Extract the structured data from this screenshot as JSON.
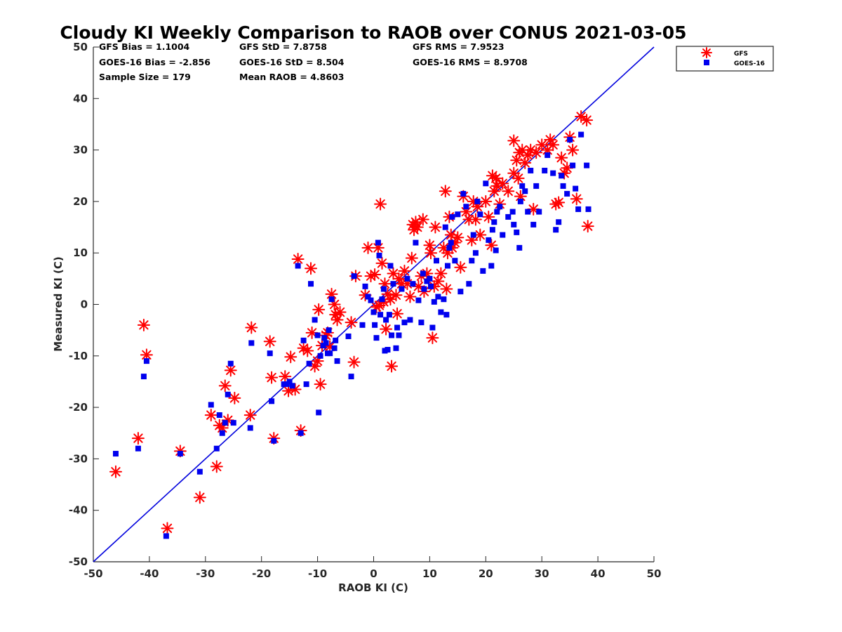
{
  "chart_data": {
    "type": "scatter",
    "title": "Cloudy KI Weekly Comparison to RAOB over CONUS 2021-03-05",
    "xlabel": "RAOB KI (C)",
    "ylabel": "Measured KI (C)",
    "xlim": [
      -50,
      50
    ],
    "ylim": [
      -50,
      50
    ],
    "xticks": [
      "-50",
      "-40",
      "-30",
      "-20",
      "-10",
      "0",
      "10",
      "20",
      "30",
      "40",
      "50"
    ],
    "yticks": [
      "-50",
      "-40",
      "-30",
      "-20",
      "-10",
      "0",
      "10",
      "20",
      "30",
      "40",
      "50"
    ],
    "grid": false,
    "legend_position": "top-right outside",
    "reference_line": {
      "label": "1:1",
      "from": [
        -50,
        -50
      ],
      "to": [
        50,
        50
      ],
      "color": "#0000dd"
    },
    "stats": {
      "gfs_bias": "GFS Bias = 1.1004",
      "goes_bias": "GOES-16 Bias = -2.856",
      "sample_size": "Sample Size = 179",
      "gfs_std": "GFS StD = 7.8758",
      "goes_std": "GOES-16 StD = 8.504",
      "mean_raob": "Mean RAOB = 4.8603",
      "gfs_rms": "GFS RMS = 7.9523",
      "goes_rms": "GOES-16 RMS = 8.9708"
    },
    "series": [
      {
        "name": "GFS",
        "marker": "asterisk",
        "color": "#ff0000",
        "points": [
          [
            -46,
            -32.5
          ],
          [
            -42,
            -26
          ],
          [
            -41,
            -4
          ],
          [
            -40.5,
            -9.8
          ],
          [
            -36.8,
            -43.5
          ],
          [
            -34.5,
            -28.5
          ],
          [
            -31,
            -37.5
          ],
          [
            -29,
            -21.5
          ],
          [
            -28,
            -31.5
          ],
          [
            -27.5,
            -23.5
          ],
          [
            -27,
            -24
          ],
          [
            -26.5,
            -15.8
          ],
          [
            -26,
            -22.5
          ],
          [
            -25.5,
            -12.8
          ],
          [
            -24.8,
            -18.2
          ],
          [
            -22,
            -21.5
          ],
          [
            -21.8,
            -4.5
          ],
          [
            -18.5,
            -7.2
          ],
          [
            -18.2,
            -14.2
          ],
          [
            -17.8,
            -26
          ],
          [
            -15.8,
            -14
          ],
          [
            -15.2,
            -16.8
          ],
          [
            -14.8,
            -10.2
          ],
          [
            -14,
            -16.5
          ],
          [
            -13.5,
            8.8
          ],
          [
            -13,
            -24.5
          ],
          [
            -12.5,
            -8.5
          ],
          [
            -11.8,
            -9
          ],
          [
            -11.2,
            7
          ],
          [
            -11,
            -5.5
          ],
          [
            -10.5,
            -12
          ],
          [
            -10,
            -11
          ],
          [
            -9.8,
            -1
          ],
          [
            -9.5,
            -15.5
          ],
          [
            -9.2,
            -8
          ],
          [
            -8.5,
            -6
          ],
          [
            -8.2,
            -5.5
          ],
          [
            -7.8,
            -8.2
          ],
          [
            -7.5,
            2
          ],
          [
            -7,
            0
          ],
          [
            -6.8,
            -2
          ],
          [
            -6.5,
            -3
          ],
          [
            -6,
            -1.5
          ],
          [
            -4,
            -3.5
          ],
          [
            -3.5,
            -11.2
          ],
          [
            -3.2,
            5.5
          ],
          [
            -1.5,
            1.8
          ],
          [
            -1,
            11
          ],
          [
            -0.5,
            5.5
          ],
          [
            0.2,
            5.8
          ],
          [
            0.5,
            -0.5
          ],
          [
            0.8,
            11
          ],
          [
            1,
            -0.2
          ],
          [
            1.2,
            19.5
          ],
          [
            1.5,
            8
          ],
          [
            1.8,
            0.5
          ],
          [
            2,
            4
          ],
          [
            2.2,
            -4.8
          ],
          [
            2.5,
            2
          ],
          [
            3,
            1
          ],
          [
            3.2,
            -12
          ],
          [
            3.5,
            6
          ],
          [
            4,
            1.8
          ],
          [
            4.2,
            -1.8
          ],
          [
            4.5,
            5
          ],
          [
            5,
            4
          ],
          [
            5.5,
            6.5
          ],
          [
            6,
            4
          ],
          [
            6.5,
            1.5
          ],
          [
            6.8,
            9
          ],
          [
            7,
            15.5
          ],
          [
            7.2,
            14.5
          ],
          [
            7.5,
            16
          ],
          [
            7.8,
            15
          ],
          [
            8,
            3.5
          ],
          [
            8.5,
            5.5
          ],
          [
            8.8,
            16.5
          ],
          [
            9,
            2.5
          ],
          [
            9.5,
            6
          ],
          [
            10,
            11.5
          ],
          [
            10.2,
            10
          ],
          [
            10.5,
            -6.5
          ],
          [
            10.8,
            3.5
          ],
          [
            11,
            15
          ],
          [
            11.5,
            4.5
          ],
          [
            12,
            6
          ],
          [
            12.5,
            11
          ],
          [
            12.8,
            22
          ],
          [
            13,
            3
          ],
          [
            13.2,
            10
          ],
          [
            13.5,
            17
          ],
          [
            13.8,
            13.5
          ],
          [
            14,
            11
          ],
          [
            14.5,
            12
          ],
          [
            15,
            13
          ],
          [
            15.5,
            7.2
          ],
          [
            16,
            21
          ],
          [
            16.5,
            18
          ],
          [
            17,
            16.5
          ],
          [
            17.5,
            12.5
          ],
          [
            17.8,
            20
          ],
          [
            18.2,
            16.5
          ],
          [
            18.5,
            19
          ],
          [
            19,
            13.5
          ],
          [
            20,
            20
          ],
          [
            20.5,
            17
          ],
          [
            21,
            11.5
          ],
          [
            21.2,
            25
          ],
          [
            21.5,
            22
          ],
          [
            21.8,
            24.5
          ],
          [
            22,
            23
          ],
          [
            22.5,
            19.5
          ],
          [
            23,
            23.5
          ],
          [
            24,
            22
          ],
          [
            25,
            25.5
          ],
          [
            25,
            31.8
          ],
          [
            25.5,
            28
          ],
          [
            25.8,
            24.5
          ],
          [
            26,
            29.5
          ],
          [
            26.2,
            21
          ],
          [
            26.5,
            30
          ],
          [
            27,
            27.5
          ],
          [
            27.5,
            29
          ],
          [
            28,
            30
          ],
          [
            28.5,
            18.5
          ],
          [
            29,
            29.5
          ],
          [
            30,
            31
          ],
          [
            31,
            30
          ],
          [
            31.5,
            32
          ],
          [
            32,
            31
          ],
          [
            32.5,
            19.5
          ],
          [
            33,
            19.8
          ],
          [
            33.5,
            28.5
          ],
          [
            34,
            25.5
          ],
          [
            34.5,
            26.5
          ],
          [
            35,
            32.5
          ],
          [
            35.5,
            30
          ],
          [
            36.2,
            20.5
          ],
          [
            37,
            36.5
          ],
          [
            38,
            35.8
          ],
          [
            38.2,
            15.2
          ]
        ]
      },
      {
        "name": "GOES-16",
        "marker": "square",
        "color": "#0000ee",
        "points": [
          [
            -46,
            -29
          ],
          [
            -42,
            -28
          ],
          [
            -41,
            -14
          ],
          [
            -40.5,
            -11
          ],
          [
            -37,
            -45
          ],
          [
            -34.5,
            -29
          ],
          [
            -31,
            -32.5
          ],
          [
            -29,
            -19.5
          ],
          [
            -28,
            -28
          ],
          [
            -27.5,
            -21.5
          ],
          [
            -27,
            -25
          ],
          [
            -26.5,
            -23
          ],
          [
            -26,
            -17.5
          ],
          [
            -25.5,
            -11.5
          ],
          [
            -25,
            -23
          ],
          [
            -22,
            -24
          ],
          [
            -21.8,
            -7.5
          ],
          [
            -18.5,
            -9.5
          ],
          [
            -18.2,
            -18.8
          ],
          [
            -17.8,
            -26.5
          ],
          [
            -16,
            -15.5
          ],
          [
            -15.5,
            -15.5
          ],
          [
            -15,
            -15
          ],
          [
            -14.5,
            -15.8
          ],
          [
            -13.5,
            7.5
          ],
          [
            -13,
            -25
          ],
          [
            -12.5,
            -7
          ],
          [
            -12,
            -15.5
          ],
          [
            -11.5,
            -11.5
          ],
          [
            -11.2,
            4
          ],
          [
            -10.5,
            -3
          ],
          [
            -10,
            -6
          ],
          [
            -9.8,
            -21
          ],
          [
            -9.5,
            -10
          ],
          [
            -9,
            -8
          ],
          [
            -8.8,
            -6.5
          ],
          [
            -8.5,
            -7.5
          ],
          [
            -8.2,
            -9.5
          ],
          [
            -8,
            -5
          ],
          [
            -7.8,
            -9.5
          ],
          [
            -7.5,
            1
          ],
          [
            -7,
            -8.5
          ],
          [
            -6.8,
            -7
          ],
          [
            -6.5,
            -11
          ],
          [
            -4.5,
            -6.2
          ],
          [
            -4,
            -14
          ],
          [
            -3.5,
            5.5
          ],
          [
            -2,
            -4
          ],
          [
            -1.5,
            3.5
          ],
          [
            -1,
            1.5
          ],
          [
            -0.5,
            0.8
          ],
          [
            0,
            -1.5
          ],
          [
            0.2,
            -4
          ],
          [
            0.5,
            -6.5
          ],
          [
            0.8,
            12
          ],
          [
            1,
            9.5
          ],
          [
            1.2,
            -2
          ],
          [
            1.5,
            1
          ],
          [
            1.8,
            3
          ],
          [
            2,
            -9
          ],
          [
            2.2,
            -3
          ],
          [
            2.5,
            -8.8
          ],
          [
            2.8,
            -2
          ],
          [
            3,
            7.5
          ],
          [
            3.2,
            -6
          ],
          [
            3.5,
            4
          ],
          [
            4,
            -8.5
          ],
          [
            4.2,
            -4.5
          ],
          [
            4.5,
            -6
          ],
          [
            5,
            3
          ],
          [
            5.5,
            -3.5
          ],
          [
            6,
            5
          ],
          [
            6.5,
            -3
          ],
          [
            7,
            4
          ],
          [
            7.5,
            12
          ],
          [
            8,
            0.8
          ],
          [
            8.5,
            -3.5
          ],
          [
            8.8,
            6
          ],
          [
            9,
            3
          ],
          [
            9.5,
            4.5
          ],
          [
            10,
            5
          ],
          [
            10.2,
            3.5
          ],
          [
            10.5,
            -4.5
          ],
          [
            10.8,
            0.5
          ],
          [
            11.2,
            8.5
          ],
          [
            11.5,
            1.5
          ],
          [
            12,
            -1.5
          ],
          [
            12.5,
            1
          ],
          [
            12.8,
            15
          ],
          [
            13,
            -2
          ],
          [
            13.2,
            7.5
          ],
          [
            13.5,
            11
          ],
          [
            13.8,
            12
          ],
          [
            14,
            17
          ],
          [
            14.5,
            8.5
          ],
          [
            15,
            17.5
          ],
          [
            15.5,
            2.5
          ],
          [
            16,
            21.5
          ],
          [
            16.5,
            19
          ],
          [
            17,
            4
          ],
          [
            17.5,
            8.5
          ],
          [
            17.8,
            13.5
          ],
          [
            18.2,
            10
          ],
          [
            18.5,
            20
          ],
          [
            19,
            17.5
          ],
          [
            19.5,
            6.5
          ],
          [
            20,
            23.5
          ],
          [
            20.5,
            12.5
          ],
          [
            21,
            7.5
          ],
          [
            21.2,
            14.5
          ],
          [
            21.5,
            16
          ],
          [
            21.8,
            10.5
          ],
          [
            22,
            18
          ],
          [
            22.5,
            19
          ],
          [
            23,
            13.5
          ],
          [
            24,
            17
          ],
          [
            24.8,
            18
          ],
          [
            25,
            15.5
          ],
          [
            25.5,
            14
          ],
          [
            26,
            11
          ],
          [
            26.2,
            20
          ],
          [
            26.5,
            23
          ],
          [
            27,
            22
          ],
          [
            27.5,
            18
          ],
          [
            28,
            26
          ],
          [
            28.5,
            15.5
          ],
          [
            29,
            23
          ],
          [
            29.5,
            18
          ],
          [
            30.5,
            26
          ],
          [
            31,
            29
          ],
          [
            32,
            25.5
          ],
          [
            32.5,
            14.5
          ],
          [
            33,
            16
          ],
          [
            33.5,
            25
          ],
          [
            33.8,
            23
          ],
          [
            34.5,
            21.5
          ],
          [
            35,
            32
          ],
          [
            35.5,
            27
          ],
          [
            36,
            22.5
          ],
          [
            36.5,
            18.5
          ],
          [
            37,
            33
          ],
          [
            38,
            27
          ],
          [
            38.3,
            18.5
          ]
        ]
      }
    ]
  }
}
